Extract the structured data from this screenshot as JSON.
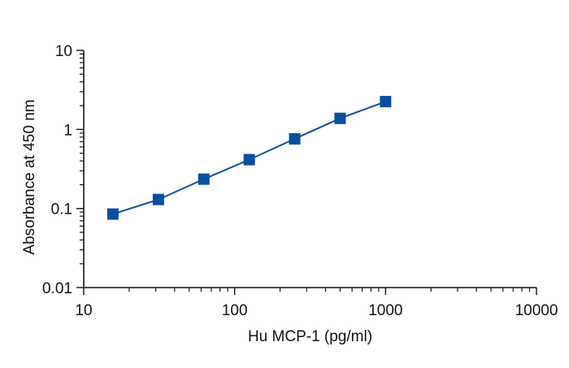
{
  "chart_data": {
    "type": "line",
    "title": "",
    "xlabel": "Hu MCP-1 (pg/ml)",
    "ylabel": "Absorbance at 450 nm",
    "x_scale": "log",
    "y_scale": "log",
    "xlim": [
      10,
      10000
    ],
    "ylim": [
      0.01,
      10
    ],
    "x_ticks": [
      "10",
      "100",
      "1000",
      "10000"
    ],
    "y_ticks": [
      "0.01",
      "0.1",
      "1",
      "10"
    ],
    "grid": false,
    "legend": "none",
    "series": [
      {
        "color": "#0b4f9c",
        "marker": "square",
        "x": [
          15.6,
          31.25,
          62.5,
          125,
          250,
          500,
          1000
        ],
        "y": [
          0.085,
          0.13,
          0.235,
          0.415,
          0.76,
          1.38,
          2.25
        ]
      }
    ]
  }
}
